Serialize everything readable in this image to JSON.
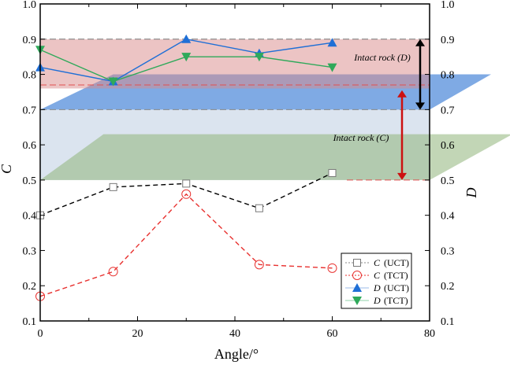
{
  "chart_data": {
    "type": "line",
    "title": "",
    "xlabel": "Angle/°",
    "ylabel_left": "C",
    "ylabel_right": "D",
    "xlim": [
      0,
      80
    ],
    "ylim": [
      0.1,
      1.0
    ],
    "xticks": [
      "0",
      "20",
      "40",
      "60",
      "80"
    ],
    "yticks": [
      "0.1",
      "0.2",
      "0.3",
      "0.4",
      "0.5",
      "0.6",
      "0.7",
      "0.8",
      "0.9",
      "1.0"
    ],
    "x": [
      0,
      15,
      30,
      45,
      60
    ],
    "series": [
      {
        "name": "C",
        "suffix": "(UCT)",
        "values": [
          0.4,
          0.48,
          0.49,
          0.42,
          0.52
        ],
        "color": "#000000",
        "marker": "square"
      },
      {
        "name": "C",
        "suffix": "(TCT)",
        "values": [
          0.17,
          0.24,
          0.46,
          0.26,
          0.25
        ],
        "color": "#e8312f",
        "marker": "circle"
      },
      {
        "name": "D",
        "suffix": "(UCT)",
        "values": [
          0.82,
          0.78,
          0.9,
          0.86,
          0.89
        ],
        "color": "#1f6fd6",
        "marker": "triangle-up"
      },
      {
        "name": "D",
        "suffix": "(TCT)",
        "values": [
          0.87,
          0.78,
          0.85,
          0.85,
          0.82
        ],
        "color": "#2fa95a",
        "marker": "triangle-down"
      }
    ],
    "bands": [
      {
        "label": "Intact rock (D)",
        "range": [
          0.7,
          0.9
        ],
        "color": "#000000"
      },
      {
        "label": "Intact rock (C)",
        "range": [
          0.5,
          0.77
        ],
        "color": "#cc1111"
      }
    ],
    "legend": "bottom-right"
  }
}
